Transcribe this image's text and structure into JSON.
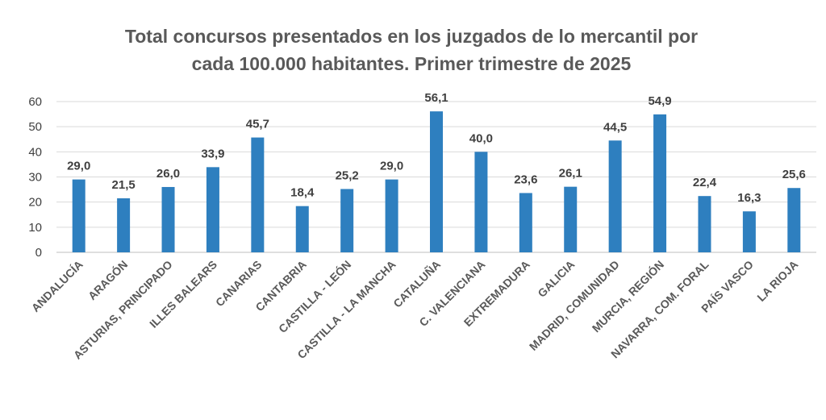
{
  "chart_data": {
    "type": "bar",
    "title_line1": "Total concursos presentados en los juzgados de lo mercantil por",
    "title_line2": "cada 100.000 habitantes. Primer trimestre de 2025",
    "categories": [
      "ANDALUCÍA",
      "ARAGÓN",
      "ASTURIAS, PRINCIPADO",
      "ILLES BALEARS",
      "CANARIAS",
      "CANTABRIA",
      "CASTILLA - LEÓN",
      "CASTILLA - LA MANCHA",
      "CATALUÑA",
      "C. VALENCIANA",
      "EXTREMADURA",
      "GALICIA",
      "MADRID, COMUNIDAD",
      "MURCIA, REGIÓN",
      "NAVARRA, COM. FORAL",
      "PAÍS VASCO",
      "LA RIOJA"
    ],
    "values": [
      29.0,
      21.5,
      26.0,
      33.9,
      45.7,
      18.4,
      25.2,
      29.0,
      56.1,
      40.0,
      23.6,
      26.1,
      44.5,
      54.9,
      22.4,
      16.3,
      25.6
    ],
    "value_labels": [
      "29,0",
      "21,5",
      "26,0",
      "33,9",
      "45,7",
      "18,4",
      "25,2",
      "29,0",
      "56,1",
      "40,0",
      "23,6",
      "26,1",
      "44,5",
      "54,9",
      "22,4",
      "16,3",
      "25,6"
    ],
    "yticks": [
      "0",
      "10",
      "20",
      "30",
      "40",
      "50",
      "60"
    ],
    "ylim": [
      0,
      60
    ],
    "grid": true,
    "bar_color": "#2e7fbf",
    "grid_color": "#d9d9d9"
  }
}
